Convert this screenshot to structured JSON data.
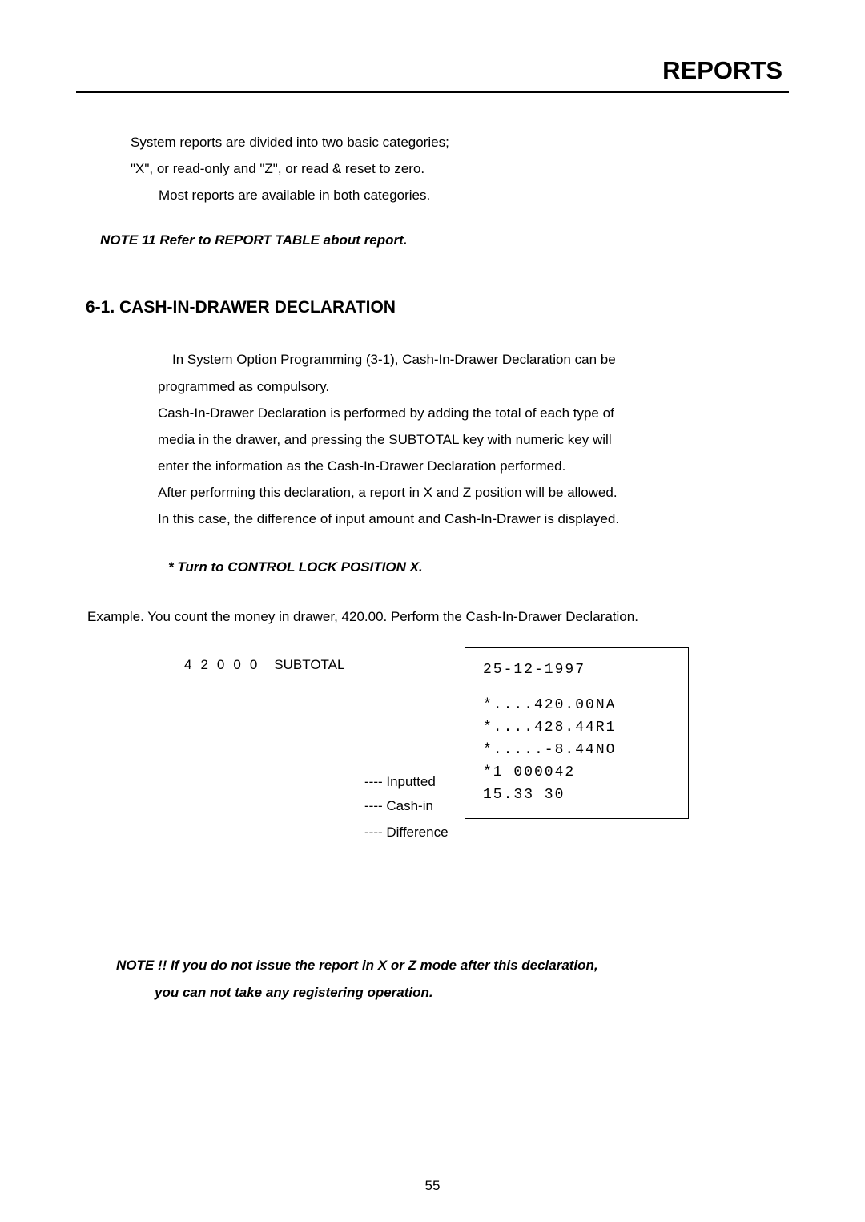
{
  "header": {
    "title": "REPORTS"
  },
  "intro": {
    "line1": "System reports are divided into two basic categories;",
    "line2": "\"X\", or read-only and \"Z\", or read & reset to zero.",
    "line3": "Most reports are available in both categories."
  },
  "note11": "NOTE 11 Refer to REPORT TABLE about report.",
  "section": {
    "heading": "6-1. CASH-IN-DRAWER DECLARATION"
  },
  "body": {
    "l1": " In System Option Programming (3-1), Cash-In-Drawer Declaration can be",
    "l2": "programmed as compulsory.",
    "l3": "Cash-In-Drawer Declaration is performed by adding the total of each type of",
    "l4": "media in the drawer, and pressing the   SUBTOTAL   key with numeric key will",
    "l5": "enter the information as the Cash-In-Drawer Declaration performed.",
    "l6": "After performing this declaration, a report in X and Z position will be allowed.",
    "l7": "In this case, the difference of input amount and Cash-In-Drawer is displayed."
  },
  "turn_note": "* Turn to CONTROL LOCK POSITION X.",
  "example": "Example. You count the money in drawer, 420.00. Perform the Cash-In-Drawer Declaration.",
  "keys": {
    "digits": "42000",
    "subtotal": "SUBTOTAL"
  },
  "receipt": {
    "r1": "25-12-1997",
    "r2": "*....420.00NA",
    "r3": "*....428.44R1",
    "r4": "*.....-8.44NO",
    "r5": "*1   000042",
    "r6": "15.33    30"
  },
  "annot": {
    "inputted": "---- Inputted",
    "cashin": "---- Cash-in",
    "diff": "---- Difference"
  },
  "note_bottom": {
    "l1": "NOTE !! If you do not issue the report in X or Z mode after this declaration,",
    "l2": "you can not take any registering operation."
  },
  "page_number": "55"
}
